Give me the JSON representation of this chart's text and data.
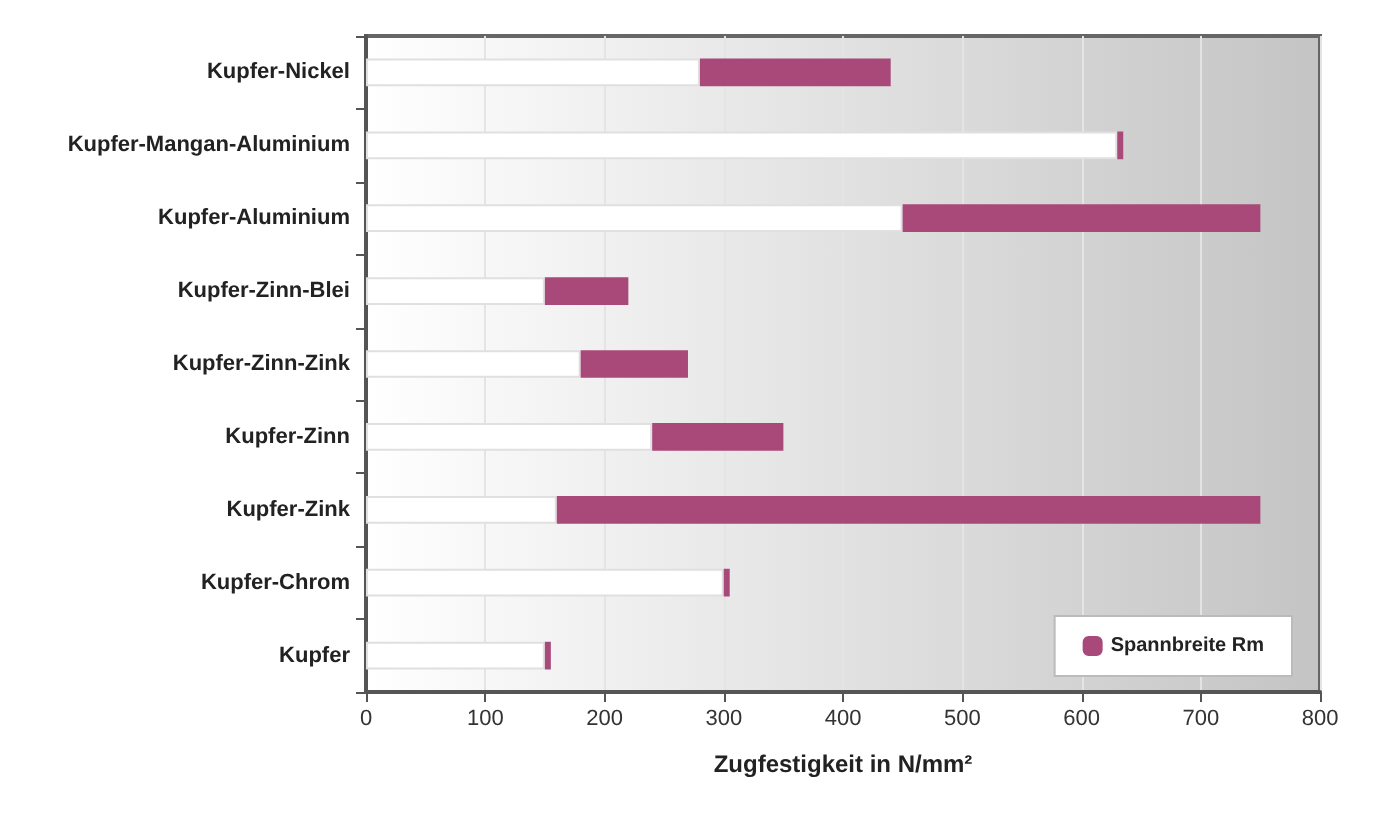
{
  "chart_data": {
    "type": "bar",
    "orientation": "horizontal",
    "stacked": true,
    "xlabel": "Zugfestigkeit in N/mm²",
    "categories": [
      "Kupfer-Nickel",
      "Kupfer-Mangan-Aluminium",
      "Kupfer-Aluminium",
      "Kupfer-Zinn-Blei",
      "Kupfer-Zinn-Zink",
      "Kupfer-Zinn",
      "Kupfer-Zink",
      "Kupfer-Chrom",
      "Kupfer"
    ],
    "series": [
      {
        "color": "#ffffff",
        "values": [
          280,
          630,
          450,
          150,
          180,
          240,
          160,
          300,
          150
        ]
      },
      {
        "name": "Spannbreite Rm",
        "color": "#a8497a",
        "values": [
          160,
          5,
          300,
          70,
          90,
          110,
          590,
          5,
          5
        ]
      }
    ],
    "xlim": [
      0,
      800
    ],
    "xticks": [
      0,
      100,
      200,
      300,
      400,
      500,
      600,
      700,
      800
    ],
    "grid": "x",
    "legend": "bottom right"
  }
}
